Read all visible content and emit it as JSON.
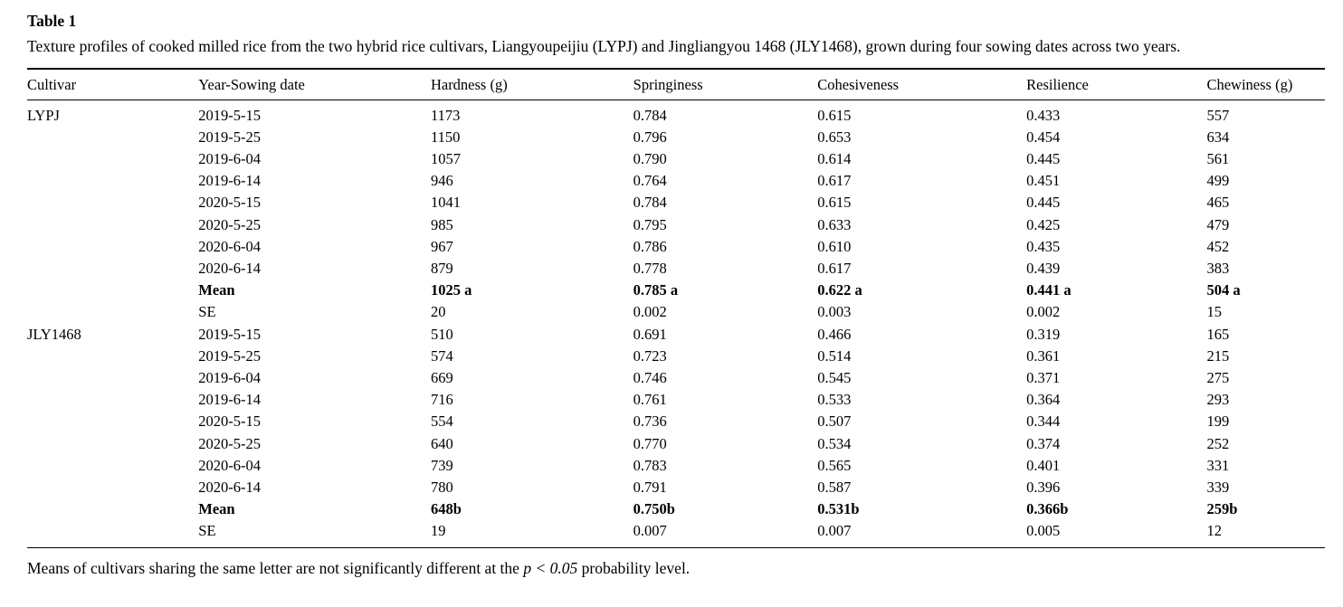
{
  "title": "Table 1",
  "caption": "Texture profiles of cooked milled rice from the two hybrid rice cultivars, Liangyoupeijiu (LYPJ) and Jingliangyou 1468 (JLY1468), grown during four sowing dates across two years.",
  "table": {
    "columns": [
      "Cultivar",
      "Year-Sowing date",
      "Hardness (g)",
      "Springiness",
      "Cohesiveness",
      "Resilience",
      "Chewiness (g)"
    ],
    "rows": [
      {
        "cells": [
          "LYPJ",
          "2019-5-15",
          "1173",
          "0.784",
          "0.615",
          "0.433",
          "557"
        ],
        "bold": false
      },
      {
        "cells": [
          "",
          "2019-5-25",
          "1150",
          "0.796",
          "0.653",
          "0.454",
          "634"
        ],
        "bold": false
      },
      {
        "cells": [
          "",
          "2019-6-04",
          "1057",
          "0.790",
          "0.614",
          "0.445",
          "561"
        ],
        "bold": false
      },
      {
        "cells": [
          "",
          "2019-6-14",
          "946",
          "0.764",
          "0.617",
          "0.451",
          "499"
        ],
        "bold": false
      },
      {
        "cells": [
          "",
          "2020-5-15",
          "1041",
          "0.784",
          "0.615",
          "0.445",
          "465"
        ],
        "bold": false
      },
      {
        "cells": [
          "",
          "2020-5-25",
          "985",
          "0.795",
          "0.633",
          "0.425",
          "479"
        ],
        "bold": false
      },
      {
        "cells": [
          "",
          "2020-6-04",
          "967",
          "0.786",
          "0.610",
          "0.435",
          "452"
        ],
        "bold": false
      },
      {
        "cells": [
          "",
          "2020-6-14",
          "879",
          "0.778",
          "0.617",
          "0.439",
          "383"
        ],
        "bold": false
      },
      {
        "cells": [
          "",
          "Mean",
          "1025 a",
          "0.785 a",
          "0.622 a",
          "0.441 a",
          "504 a"
        ],
        "bold": true
      },
      {
        "cells": [
          "",
          "SE",
          "20",
          "0.002",
          "0.003",
          "0.002",
          "15"
        ],
        "bold": false
      },
      {
        "cells": [
          "JLY1468",
          "2019-5-15",
          "510",
          "0.691",
          "0.466",
          "0.319",
          "165"
        ],
        "bold": false
      },
      {
        "cells": [
          "",
          "2019-5-25",
          "574",
          "0.723",
          "0.514",
          "0.361",
          "215"
        ],
        "bold": false
      },
      {
        "cells": [
          "",
          "2019-6-04",
          "669",
          "0.746",
          "0.545",
          "0.371",
          "275"
        ],
        "bold": false
      },
      {
        "cells": [
          "",
          "2019-6-14",
          "716",
          "0.761",
          "0.533",
          "0.364",
          "293"
        ],
        "bold": false
      },
      {
        "cells": [
          "",
          "2020-5-15",
          "554",
          "0.736",
          "0.507",
          "0.344",
          "199"
        ],
        "bold": false
      },
      {
        "cells": [
          "",
          "2020-5-25",
          "640",
          "0.770",
          "0.534",
          "0.374",
          "252"
        ],
        "bold": false
      },
      {
        "cells": [
          "",
          "2020-6-04",
          "739",
          "0.783",
          "0.565",
          "0.401",
          "331"
        ],
        "bold": false
      },
      {
        "cells": [
          "",
          "2020-6-14",
          "780",
          "0.791",
          "0.587",
          "0.396",
          "339"
        ],
        "bold": false
      },
      {
        "cells": [
          "",
          "Mean",
          "648b",
          "0.750b",
          "0.531b",
          "0.366b",
          "259b"
        ],
        "bold": true
      },
      {
        "cells": [
          "",
          "SE",
          "19",
          "0.007",
          "0.007",
          "0.005",
          "12"
        ],
        "bold": false
      }
    ]
  },
  "footnote": {
    "prefix": "Means of cultivars sharing the same letter are not significantly different at the ",
    "italic": "p < 0.05",
    "suffix": " probability level."
  }
}
